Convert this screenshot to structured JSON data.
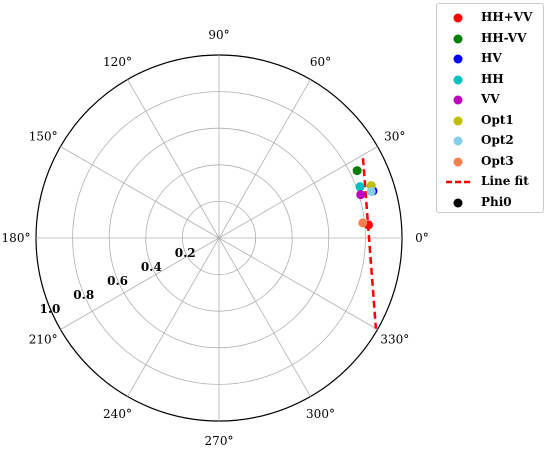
{
  "chart_data": {
    "type": "scatter",
    "projection": "polar",
    "theta_unit": "degrees",
    "rlim": [
      0,
      1.0
    ],
    "r_ticks": [
      "0.2",
      "0.4",
      "0.6",
      "0.8",
      "1.0"
    ],
    "r_tick_values": [
      0.2,
      0.4,
      0.6,
      0.8,
      1.0
    ],
    "theta_ticks": [
      "0°",
      "30°",
      "60°",
      "90°",
      "120°",
      "150°",
      "180°",
      "210°",
      "240°",
      "270°",
      "300°",
      "330°"
    ],
    "theta_tick_values": [
      0,
      30,
      60,
      90,
      120,
      150,
      180,
      210,
      240,
      270,
      300,
      330
    ],
    "grid": true,
    "legend_position": "outside top-right",
    "series": [
      {
        "name": "HH+VV",
        "color": "#ff0000",
        "marker": "circle",
        "points": [
          {
            "theta": 5,
            "r": 0.82
          }
        ]
      },
      {
        "name": "HH-VV",
        "color": "#007f00",
        "marker": "circle",
        "points": [
          {
            "theta": 26,
            "r": 0.84
          }
        ]
      },
      {
        "name": "HV",
        "color": "#0000ff",
        "marker": "circle",
        "points": [
          {
            "theta": 17,
            "r": 0.88
          }
        ]
      },
      {
        "name": "HH",
        "color": "#00bfbf",
        "marker": "circle",
        "points": [
          {
            "theta": 20,
            "r": 0.82
          }
        ]
      },
      {
        "name": "VV",
        "color": "#bf00bf",
        "marker": "circle",
        "points": [
          {
            "theta": 17,
            "r": 0.81
          }
        ]
      },
      {
        "name": "Opt1",
        "color": "#bfbf00",
        "marker": "circle",
        "points": [
          {
            "theta": 19,
            "r": 0.88
          }
        ]
      },
      {
        "name": "Opt2",
        "color": "#87ceeb",
        "marker": "circle",
        "points": [
          {
            "theta": 17,
            "r": 0.87
          }
        ]
      },
      {
        "name": "Opt3",
        "color": "#f08050",
        "marker": "circle",
        "points": [
          {
            "theta": 6,
            "r": 0.79
          }
        ]
      },
      {
        "name": "Line fit",
        "color": "#ff0000",
        "marker": "dashed-line",
        "points": [
          {
            "theta": 29,
            "r": 0.9
          },
          {
            "theta": -30,
            "r": 0.99
          }
        ]
      },
      {
        "name": "Phi0",
        "color": "#000000",
        "marker": "circle",
        "points": []
      }
    ]
  }
}
